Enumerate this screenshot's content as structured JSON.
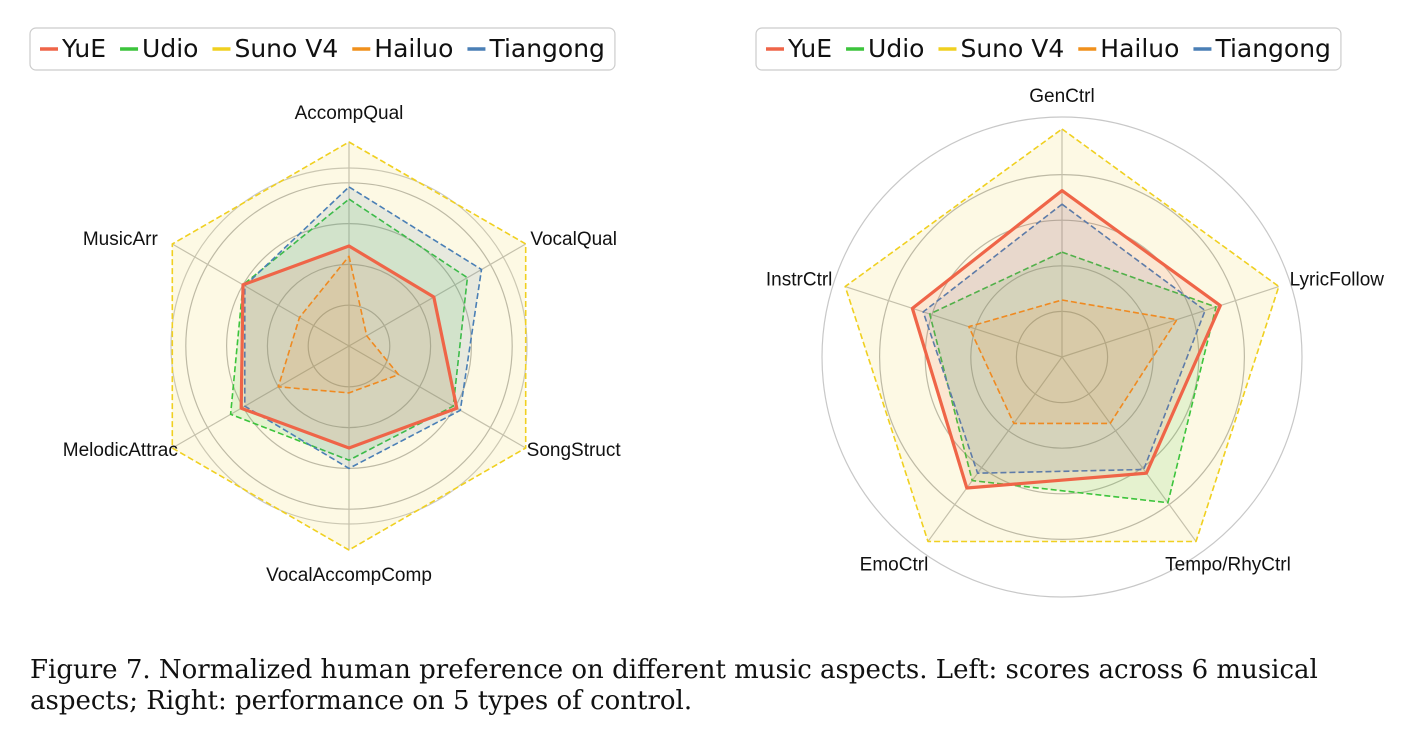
{
  "caption": "Figure 7. Normalized human preference on different music aspects. Left: scores across 6 musical aspects; Right: performance on 5 types of control.",
  "colors": {
    "YuE": "#ef6548",
    "Udio": "#3cc43c",
    "Suno V4": "#f0d020",
    "Hailuo": "#f0901c",
    "Tiangong": "#4a7fb5"
  },
  "chart_data": [
    {
      "type": "radar",
      "legend": [
        "YuE",
        "Udio",
        "Suno V4",
        "Hailuo",
        "Tiangong"
      ],
      "legend_placement": "top",
      "grid": true,
      "rlim": [
        0,
        1
      ],
      "axes": [
        "AccompQual",
        "VocalQual",
        "SongStruct",
        "VocalAccompComp",
        "MelodicAttrac",
        "MusicArr"
      ],
      "series": [
        {
          "name": "YuE",
          "values": [
            0.49,
            0.48,
            0.61,
            0.5,
            0.61,
            0.6
          ]
        },
        {
          "name": "Udio",
          "values": [
            0.72,
            0.67,
            0.59,
            0.56,
            0.67,
            0.6
          ]
        },
        {
          "name": "Suno V4",
          "values": [
            1.0,
            1.0,
            1.0,
            1.0,
            1.0,
            1.0
          ]
        },
        {
          "name": "Hailuo",
          "values": [
            0.44,
            0.1,
            0.28,
            0.23,
            0.4,
            0.28
          ]
        },
        {
          "name": "Tiangong",
          "values": [
            0.78,
            0.75,
            0.63,
            0.6,
            0.59,
            0.59
          ]
        }
      ]
    },
    {
      "type": "radar",
      "legend": [
        "YuE",
        "Udio",
        "Suno V4",
        "Hailuo",
        "Tiangong"
      ],
      "legend_placement": "top",
      "grid": true,
      "rlim": [
        0,
        1
      ],
      "axes": [
        "GenCtrl",
        "LyricFollow",
        "Tempo/RhyCtrl",
        "EmoCtrl",
        "InstrCtrl"
      ],
      "series": [
        {
          "name": "YuE",
          "values": [
            0.73,
            0.73,
            0.63,
            0.71,
            0.69
          ]
        },
        {
          "name": "Udio",
          "values": [
            0.46,
            0.71,
            0.79,
            0.67,
            0.61
          ]
        },
        {
          "name": "Suno V4",
          "values": [
            1.0,
            1.0,
            1.0,
            1.0,
            1.0
          ]
        },
        {
          "name": "Hailuo",
          "values": [
            0.25,
            0.53,
            0.36,
            0.36,
            0.43
          ]
        },
        {
          "name": "Tiangong",
          "values": [
            0.67,
            0.66,
            0.61,
            0.63,
            0.64
          ]
        }
      ]
    }
  ]
}
